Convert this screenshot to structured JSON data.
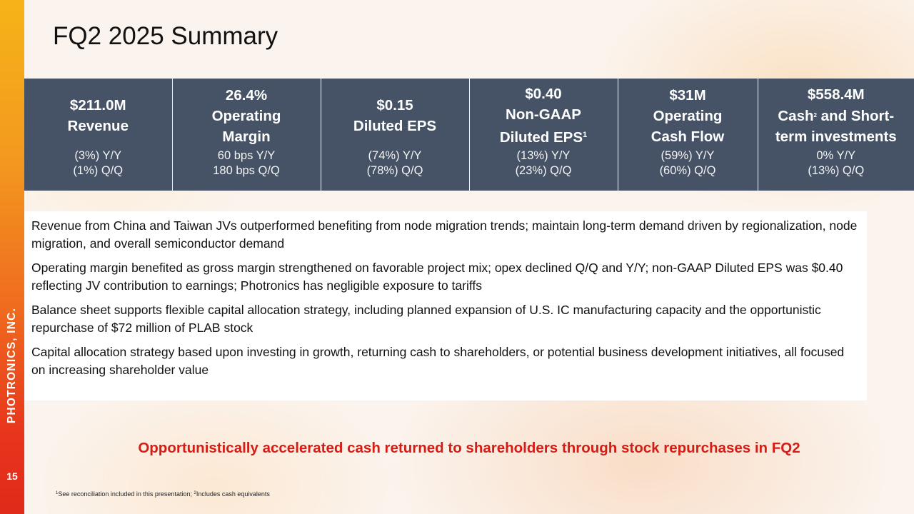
{
  "sidebar": {
    "company": "PHOTRONICS, INC.",
    "page_number": "15"
  },
  "title": "FQ2 2025 Summary",
  "kpis": [
    {
      "lines": [
        "$211.0M",
        "Revenue"
      ],
      "sub": [
        "(3%) Y/Y",
        "(1%) Q/Q"
      ]
    },
    {
      "lines": [
        "26.4%",
        "Operating",
        "Margin"
      ],
      "sub": [
        "60 bps Y/Y",
        "180 bps Q/Q"
      ]
    },
    {
      "lines": [
        "$0.15",
        "Diluted EPS"
      ],
      "sub": [
        "(74%) Y/Y",
        "(78%) Q/Q"
      ]
    },
    {
      "lines": [
        "$0.40",
        "Non-GAAP",
        "Diluted EPS"
      ],
      "sup": "1",
      "sub": [
        "(13%) Y/Y",
        "(23%) Q/Q"
      ]
    },
    {
      "lines": [
        "$31M",
        "Operating",
        "Cash Flow"
      ],
      "sub": [
        "(59%) Y/Y",
        "(60%) Q/Q"
      ]
    },
    {
      "lines": [
        "$558.4M",
        "Cash",
        "term investments"
      ],
      "cash_sup": "2",
      "cash_suffix": " and Short-",
      "sub": [
        "0% Y/Y",
        "(13%) Q/Q"
      ]
    }
  ],
  "bullets": [
    "Revenue from China and Taiwan JVs outperformed benefiting from node migration trends; maintain long-term demand driven by regionalization, node migration, and overall semiconductor demand",
    "Operating margin benefited as gross margin strengthened on favorable project mix; opex declined Q/Q and Y/Y; non-GAAP Diluted EPS was $0.40 reflecting JV contribution to earnings; Photronics has negligible exposure to tariffs",
    "Balance sheet supports flexible capital allocation strategy, including planned expansion of U.S. IC manufacturing capacity and the opportunistic repurchase of $72 million of PLAB stock",
    "Capital allocation strategy based upon investing in growth, returning cash to shareholders, or potential business development initiatives, all focused on increasing shareholder value"
  ],
  "highlight": "Opportunistically accelerated cash returned to shareholders through stock repurchases in FQ2",
  "footnote": {
    "sup1": "1",
    "text1": "See reconciliation included in this presentation; ",
    "sup2": "2",
    "text2": "Includes cash equivalents"
  }
}
